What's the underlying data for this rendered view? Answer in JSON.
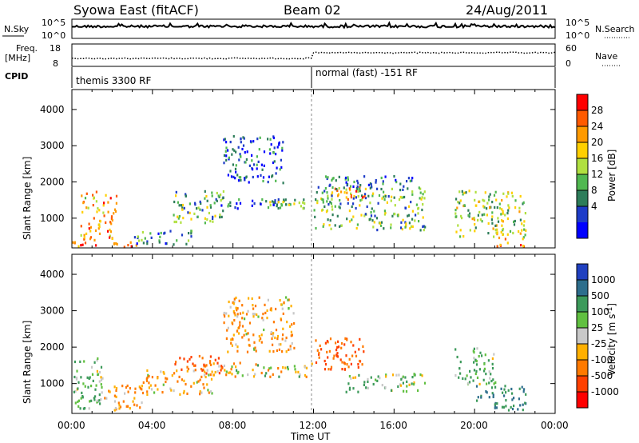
{
  "header": {
    "station": "Syowa East (fitACF)",
    "beam": "Beam 02",
    "date": "24/Aug/2011"
  },
  "noise_panel": {
    "left_label": "N.Sky",
    "left_ticks": [
      "10^5",
      "10^0"
    ],
    "right_label": "N.Search",
    "right_ticks": [
      "10^5",
      "10^0"
    ]
  },
  "freq_panel": {
    "left_label_1": "Freq.",
    "left_label_2": "[MHz]",
    "left_ticks": [
      "18",
      "8"
    ],
    "right_label": "Nave",
    "right_ticks": [
      "60",
      "0"
    ]
  },
  "cpid_panel": {
    "label": "CPID",
    "segments": [
      {
        "text": "themis 3300 RF",
        "start_hour": 0
      },
      {
        "text": "normal (fast) -151 RF",
        "start_hour": 12
      }
    ]
  },
  "power_colorbar": {
    "label": "Power [dB]",
    "ticks": [
      "28",
      "24",
      "20",
      "16",
      "12",
      "8",
      "4"
    ],
    "colors": [
      "#ff0000",
      "#ff5a00",
      "#ff9a00",
      "#ffd000",
      "#b0e040",
      "#50b850",
      "#2d7d5a",
      "#1e3cc8",
      "#0000ff"
    ]
  },
  "velocity_colorbar": {
    "label": "Velocity [m s^-1]",
    "ticks": [
      "1000",
      "500",
      "100",
      "25",
      "-25",
      "-100",
      "-500",
      "-1000"
    ],
    "colors": [
      "#2040c0",
      "#2d6e8c",
      "#3c9a5a",
      "#60c040",
      "#c8c8c8",
      "#ffb000",
      "#ff7a00",
      "#ff4000",
      "#ff0000"
    ]
  },
  "time_axis": {
    "ticks": [
      "00:00",
      "04:00",
      "08:00",
      "12:00",
      "16:00",
      "20:00",
      "00:00"
    ],
    "label": "Time UT"
  },
  "range_axis": {
    "label": "Slant Range [km]",
    "ticks": [
      "4000",
      "3000",
      "2000",
      "1000"
    ]
  },
  "chart_data": [
    {
      "type": "heatmap",
      "panel": "Power",
      "xlabel": "Time UT",
      "ylabel": "Slant Range [km]",
      "xlim_hours": [
        0,
        24
      ],
      "ylim_km": [
        180,
        4550
      ],
      "colorbar": "Power [dB]",
      "clim": [
        0,
        30
      ],
      "regions": [
        {
          "t": [
            0.4,
            1.4
          ],
          "r": [
            400,
            1800
          ],
          "value": 20
        },
        {
          "t": [
            1.5,
            2.2
          ],
          "r": [
            400,
            1700
          ],
          "value": 22
        },
        {
          "t": [
            0.0,
            3.5
          ],
          "r": [
            180,
            380
          ],
          "value": 24
        },
        {
          "t": [
            3.0,
            6.0
          ],
          "r": [
            300,
            700
          ],
          "value": 8
        },
        {
          "t": [
            5.0,
            7.5
          ],
          "r": [
            900,
            1800
          ],
          "value": 12
        },
        {
          "t": [
            6.5,
            11.5
          ],
          "r": [
            1300,
            1600
          ],
          "value": 6
        },
        {
          "t": [
            7.5,
            10.5
          ],
          "r": [
            2000,
            3300
          ],
          "value": 6
        },
        {
          "t": [
            9.0,
            12.0
          ],
          "r": [
            1300,
            1500
          ],
          "value": 14
        },
        {
          "t": [
            12.0,
            17.5
          ],
          "r": [
            700,
            1900
          ],
          "value": 12
        },
        {
          "t": [
            13.0,
            14.5
          ],
          "r": [
            1500,
            1900
          ],
          "value": 20
        },
        {
          "t": [
            12.5,
            17.0
          ],
          "r": [
            1800,
            2200
          ],
          "value": 6
        },
        {
          "t": [
            19.0,
            22.5
          ],
          "r": [
            500,
            1800
          ],
          "value": 14
        },
        {
          "t": [
            21.0,
            22.5
          ],
          "r": [
            250,
            700
          ],
          "value": 22
        }
      ]
    },
    {
      "type": "heatmap",
      "panel": "Velocity",
      "xlabel": "Time UT",
      "ylabel": "Slant Range [km]",
      "xlim_hours": [
        0,
        24
      ],
      "ylim_km": [
        180,
        4550
      ],
      "colorbar": "Velocity [m s^-1]",
      "clim": [
        -1000,
        1000
      ],
      "regions": [
        {
          "t": [
            0.0,
            1.5
          ],
          "r": [
            300,
            1800
          ],
          "value": 100
        },
        {
          "t": [
            1.5,
            3.5
          ],
          "r": [
            300,
            1000
          ],
          "value": -100
        },
        {
          "t": [
            3.5,
            7.0
          ],
          "r": [
            700,
            1400
          ],
          "value": -100
        },
        {
          "t": [
            5.0,
            7.5
          ],
          "r": [
            1300,
            1800
          ],
          "value": -500
        },
        {
          "t": [
            7.0,
            12.0
          ],
          "r": [
            1200,
            1600
          ],
          "value": 0
        },
        {
          "t": [
            7.5,
            11.0
          ],
          "r": [
            1900,
            3400
          ],
          "value": -100
        },
        {
          "t": [
            12.0,
            14.5
          ],
          "r": [
            1400,
            2300
          ],
          "value": -500
        },
        {
          "t": [
            13.5,
            17.5
          ],
          "r": [
            800,
            1300
          ],
          "value": 100
        },
        {
          "t": [
            19.0,
            21.0
          ],
          "r": [
            1000,
            2000
          ],
          "value": 100
        },
        {
          "t": [
            20.0,
            22.5
          ],
          "r": [
            300,
            1000
          ],
          "value": 500
        }
      ]
    }
  ]
}
